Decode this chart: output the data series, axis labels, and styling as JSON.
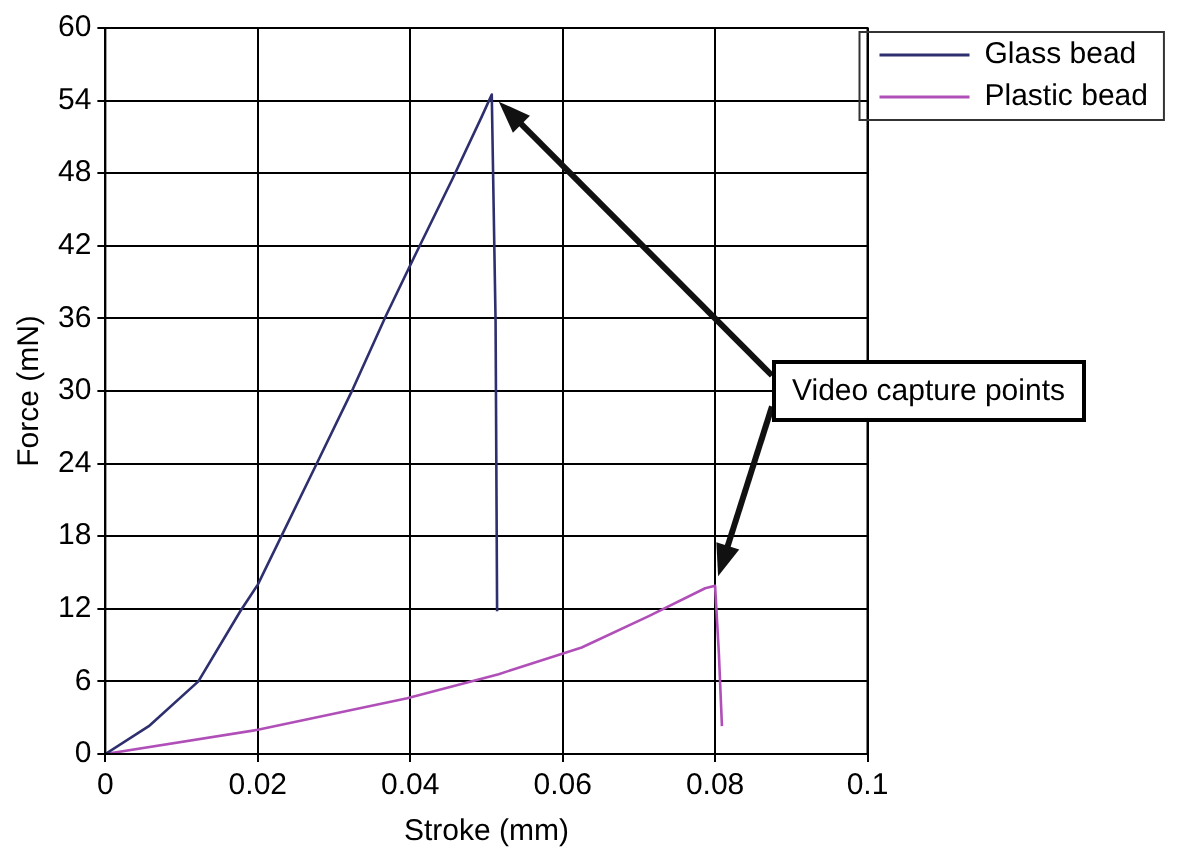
{
  "chart_data": {
    "type": "line",
    "xlabel": "Stroke (mm)",
    "ylabel": "Force (mN)",
    "xlim": [
      0,
      0.1
    ],
    "xticks": [
      0,
      0.02,
      0.04,
      0.06,
      0.08,
      0.1
    ],
    "ylim": [
      0,
      60
    ],
    "yticks": [
      0,
      6,
      12,
      18,
      24,
      30,
      36,
      42,
      48,
      54,
      60
    ],
    "grid": true,
    "legend": "top right",
    "marker": "none",
    "line_style": "solid",
    "annotations": [
      "Video capture points"
    ],
    "series": [
      {
        "name": "Glass bead",
        "color": "#2e2f6e",
        "x": [
          0,
          0.0057,
          0.0122,
          0.0177,
          0.02,
          0.0275,
          0.0325,
          0.0368,
          0.0407,
          0.0456,
          0.0494,
          0.0507,
          0.0512,
          0.0514
        ],
        "values": [
          0,
          2.3,
          6.0,
          11.8,
          14.0,
          23.7,
          30.2,
          36.2,
          41.3,
          47.6,
          52.7,
          54.5,
          35.7,
          11.8
        ]
      },
      {
        "name": "Plastic bead",
        "color": "#b04fb8",
        "x": [
          0,
          0.02,
          0.0396,
          0.0516,
          0.0625,
          0.0713,
          0.0787,
          0.08,
          0.0805,
          0.0809
        ],
        "values": [
          0,
          2.0,
          4.6,
          6.6,
          8.8,
          11.4,
          13.7,
          13.9,
          8.3,
          2.3
        ]
      }
    ]
  }
}
